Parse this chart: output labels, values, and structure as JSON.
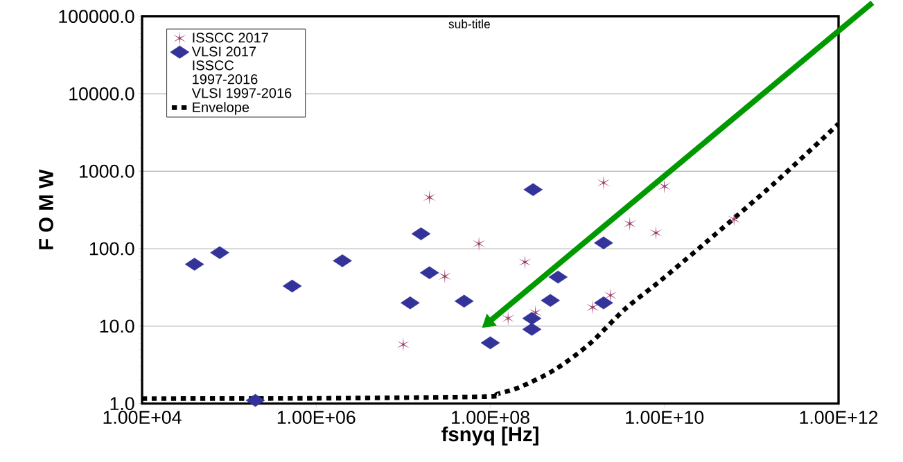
{
  "chart_data": {
    "type": "scatter",
    "subtitle": "sub-title",
    "xlabel": "fsnyq [Hz]",
    "ylabel": "F O M W",
    "log": "xy",
    "grid": "y",
    "legend": "top left",
    "xlim": [
      10000,
      1000000000000
    ],
    "ylim": [
      1,
      100000
    ],
    "xticks": [
      {
        "value": 10000,
        "label": "1.00E+04"
      },
      {
        "value": 1000000,
        "label": "1.00E+06"
      },
      {
        "value": 100000000,
        "label": "1.00E+08"
      },
      {
        "value": 10000000000,
        "label": "1.00E+10"
      },
      {
        "value": 1000000000000,
        "label": "1.00E+12"
      }
    ],
    "yticks": [
      {
        "value": 1,
        "label": "1.0"
      },
      {
        "value": 10,
        "label": "10.0"
      },
      {
        "value": 100,
        "label": "100.0"
      },
      {
        "value": 1000,
        "label": "1000.0"
      },
      {
        "value": 10000,
        "label": "10000.0"
      },
      {
        "value": 100000,
        "label": "100000.0"
      }
    ],
    "series": [
      {
        "name": "ISSCC 2017",
        "marker": "cross",
        "color": "#993366",
        "x": [
          10000000.0,
          20000000.0,
          30000000.0,
          74000000.0,
          250000000.0,
          160000000.0,
          330000000.0,
          1500000000.0,
          2400000000.0,
          2000000000.0,
          4000000000.0,
          8000000000.0,
          10000000000.0,
          63000000000.0
        ],
        "values": [
          5.8,
          460,
          44,
          116,
          67,
          12.6,
          15,
          17.5,
          25,
          710,
          210,
          160,
          640,
          240
        ]
      },
      {
        "name": "VLSI 2017",
        "marker": "diamond",
        "color": "#333399",
        "x": [
          40000.0,
          78000.0,
          200000.0,
          530000.0,
          2000000.0,
          12000000.0,
          16000000.0,
          20000000.0,
          50000000.0,
          100000000.0,
          310000000.0,
          300000000.0,
          300000000.0,
          490000000.0,
          600000000.0,
          2000000000.0,
          2000000000.0
        ],
        "values": [
          63,
          89,
          1.1,
          33,
          70,
          20,
          156,
          49,
          21,
          6.1,
          580,
          12.6,
          9.1,
          21.5,
          43,
          119,
          20
        ]
      },
      {
        "name": "ISSCC 1997-2016",
        "marker": "none"
      },
      {
        "name": "VLSI 1997-2016",
        "marker": "none"
      },
      {
        "name": "Envelope",
        "type": "line",
        "marker": "none",
        "line_style": "dotted",
        "color": "#000000",
        "x": [
          10000.0,
          1000000.0,
          87000000.0,
          120000000.0,
          220000000.0,
          550000000.0,
          1380000000.0,
          3500000000.0,
          8700000000.0,
          29500000000.0,
          186000000000.0,
          1000000000000.0
        ],
        "values": [
          1.16,
          1.17,
          1.23,
          1.33,
          1.64,
          2.74,
          5.9,
          16.5,
          37.5,
          119,
          713,
          4100
        ]
      }
    ]
  }
}
